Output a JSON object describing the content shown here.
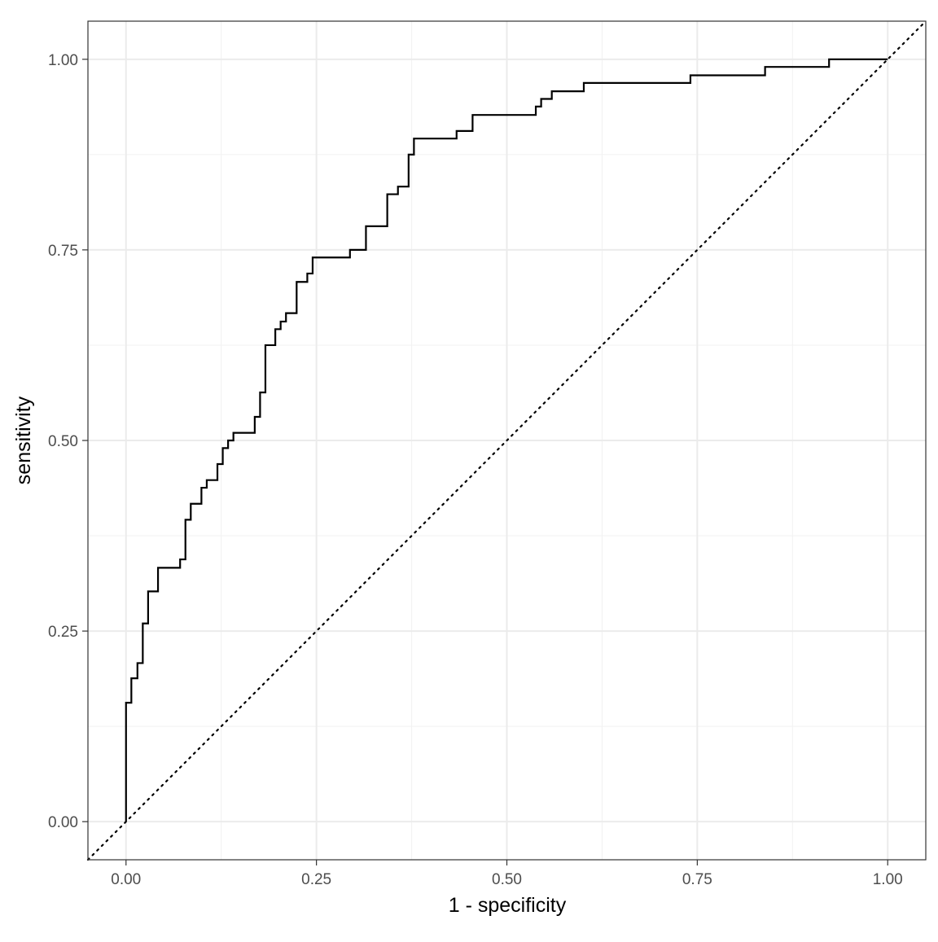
{
  "chart_data": {
    "type": "line",
    "title": "",
    "xlabel": "1 - specificity",
    "ylabel": "sensitivity",
    "xlim": [
      -0.05,
      1.05
    ],
    "ylim": [
      -0.05,
      1.05
    ],
    "x_ticks": [
      0,
      0.25,
      0.5,
      0.75,
      1
    ],
    "x_tick_labels": [
      "0.00",
      "0.25",
      "0.50",
      "0.75",
      "1.00"
    ],
    "y_ticks": [
      0,
      0.25,
      0.5,
      0.75,
      1
    ],
    "y_tick_labels": [
      "0.00",
      "0.25",
      "0.50",
      "0.75",
      "1.00"
    ],
    "grid": true,
    "minor_grid": true,
    "theme": "bw",
    "colors": {
      "curve": "#000000",
      "grid_major": "#ebebeb",
      "grid_minor": "#f2f2f2",
      "panel_border": "#333333",
      "tick_label": "#4d4d4d"
    },
    "series": [
      {
        "style": "step",
        "points": [
          [
            0.0,
            0.0
          ],
          [
            0.0,
            0.156
          ],
          [
            0.007,
            0.156
          ],
          [
            0.007,
            0.188
          ],
          [
            0.015,
            0.188
          ],
          [
            0.015,
            0.208
          ],
          [
            0.022,
            0.208
          ],
          [
            0.022,
            0.26
          ],
          [
            0.029,
            0.26
          ],
          [
            0.029,
            0.302
          ],
          [
            0.042,
            0.302
          ],
          [
            0.042,
            0.333
          ],
          [
            0.071,
            0.333
          ],
          [
            0.071,
            0.344
          ],
          [
            0.078,
            0.344
          ],
          [
            0.078,
            0.396
          ],
          [
            0.085,
            0.396
          ],
          [
            0.085,
            0.417
          ],
          [
            0.099,
            0.417
          ],
          [
            0.099,
            0.438
          ],
          [
            0.106,
            0.438
          ],
          [
            0.106,
            0.448
          ],
          [
            0.12,
            0.448
          ],
          [
            0.12,
            0.469
          ],
          [
            0.127,
            0.469
          ],
          [
            0.127,
            0.49
          ],
          [
            0.134,
            0.49
          ],
          [
            0.134,
            0.5
          ],
          [
            0.141,
            0.5
          ],
          [
            0.141,
            0.51
          ],
          [
            0.169,
            0.51
          ],
          [
            0.169,
            0.531
          ],
          [
            0.176,
            0.531
          ],
          [
            0.176,
            0.563
          ],
          [
            0.183,
            0.563
          ],
          [
            0.183,
            0.625
          ],
          [
            0.196,
            0.625
          ],
          [
            0.196,
            0.646
          ],
          [
            0.203,
            0.646
          ],
          [
            0.203,
            0.656
          ],
          [
            0.21,
            0.656
          ],
          [
            0.21,
            0.667
          ],
          [
            0.224,
            0.667
          ],
          [
            0.224,
            0.708
          ],
          [
            0.238,
            0.708
          ],
          [
            0.238,
            0.719
          ],
          [
            0.245,
            0.719
          ],
          [
            0.245,
            0.74
          ],
          [
            0.294,
            0.74
          ],
          [
            0.294,
            0.75
          ],
          [
            0.315,
            0.75
          ],
          [
            0.315,
            0.781
          ],
          [
            0.343,
            0.781
          ],
          [
            0.343,
            0.823
          ],
          [
            0.357,
            0.823
          ],
          [
            0.357,
            0.833
          ],
          [
            0.371,
            0.833
          ],
          [
            0.371,
            0.875
          ],
          [
            0.378,
            0.875
          ],
          [
            0.378,
            0.896
          ],
          [
            0.434,
            0.896
          ],
          [
            0.434,
            0.906
          ],
          [
            0.455,
            0.906
          ],
          [
            0.455,
            0.927
          ],
          [
            0.538,
            0.927
          ],
          [
            0.538,
            0.938
          ],
          [
            0.545,
            0.938
          ],
          [
            0.545,
            0.948
          ],
          [
            0.559,
            0.948
          ],
          [
            0.559,
            0.958
          ],
          [
            0.601,
            0.958
          ],
          [
            0.601,
            0.969
          ],
          [
            0.741,
            0.969
          ],
          [
            0.741,
            0.979
          ],
          [
            0.839,
            0.979
          ],
          [
            0.839,
            0.99
          ],
          [
            0.923,
            0.99
          ],
          [
            0.923,
            1.0
          ],
          [
            1.0,
            1.0
          ]
        ]
      }
    ],
    "reference_line": {
      "style": "dotted",
      "from": [
        -0.05,
        -0.05
      ],
      "to": [
        1.05,
        1.05
      ]
    }
  }
}
